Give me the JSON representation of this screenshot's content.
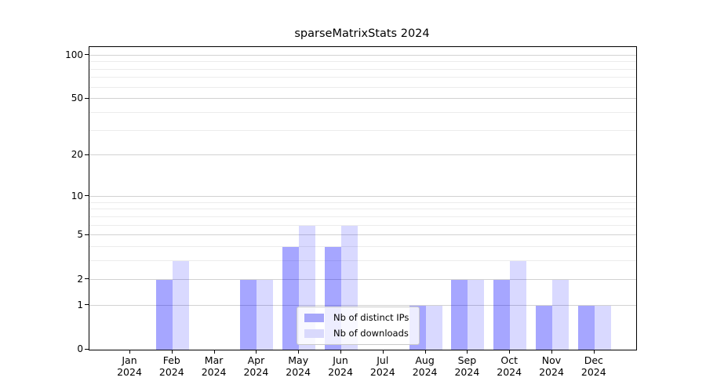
{
  "title": "sparseMatrixStats 2024",
  "chart_data": {
    "type": "bar",
    "title": "sparseMatrixStats 2024",
    "categories": [
      "Jan 2024",
      "Feb 2024",
      "Mar 2024",
      "Apr 2024",
      "May 2024",
      "Jun 2024",
      "Jul 2024",
      "Aug 2024",
      "Sep 2024",
      "Oct 2024",
      "Nov 2024",
      "Dec 2024"
    ],
    "series": [
      {
        "name": "Nb of distinct IPs",
        "color": "rgba(0,0,255,0.35)",
        "legend_color": "#a6a6fa",
        "values": [
          0,
          2,
          0,
          2,
          4,
          4,
          0,
          1,
          2,
          2,
          1,
          1
        ]
      },
      {
        "name": "Nb of downloads",
        "color": "rgba(0,0,255,0.15)",
        "legend_color": "#d9d9fc",
        "values": [
          0,
          3,
          0,
          2,
          6,
          6,
          0,
          1,
          2,
          3,
          2,
          1
        ]
      }
    ],
    "xlabel": "",
    "ylabel": "",
    "y_scale": "log1p",
    "y_ticks_major": [
      0,
      1,
      2,
      5,
      10,
      20,
      50,
      100
    ],
    "y_ticks_minor": [
      3,
      4,
      6,
      7,
      8,
      9,
      30,
      40,
      60,
      70,
      80,
      90
    ],
    "ylim": [
      0,
      114
    ],
    "grid": "horizontal",
    "legend_position": "lower-center",
    "colors": {
      "gridline_major": "#d2d2d2",
      "gridline_minor": "#ececec",
      "axis": "#000000",
      "background": "#ffffff"
    }
  }
}
